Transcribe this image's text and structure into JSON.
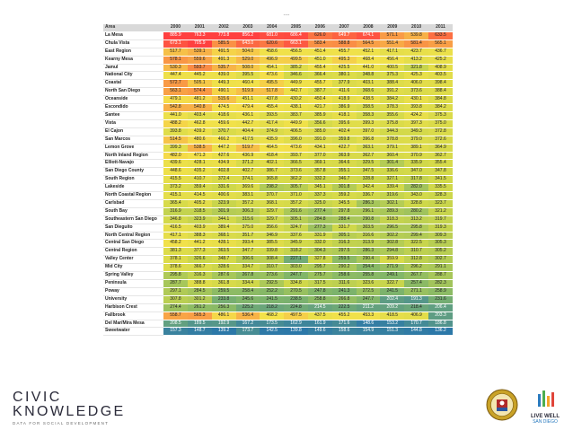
{
  "slide_title": "----",
  "table": {
    "columns": [
      "Area",
      "2000",
      "2001",
      "2002",
      "2003",
      "2004",
      "2005",
      "2006",
      "2007",
      "2008",
      "2009",
      "2010",
      "2011"
    ],
    "color_scale": {
      "high": "#ff4040",
      "mid_high": "#f4e24a",
      "mid": "#cfd84a",
      "low_mid": "#7fb56a",
      "low": "#2c78a8"
    },
    "rows": [
      [
        "La Mesa",
        "885.9",
        "763.3",
        "773.8",
        "856.2",
        "681.0",
        "686.4",
        "626.0",
        "649.7",
        "674.1",
        "571.1",
        "539.8",
        "633.5"
      ],
      [
        "Chula Vista",
        "673.1",
        "705.9",
        "585.5",
        "643.0",
        "620.6",
        "663.1",
        "583.4",
        "588.8",
        "564.5",
        "551.4",
        "581.4",
        "565.1"
      ],
      [
        "East Region",
        "517.7",
        "539.1",
        "491.5",
        "504.0",
        "458.6",
        "456.5",
        "451.4",
        "455.7",
        "452.1",
        "417.1",
        "423.7",
        "436.7"
      ],
      [
        "Kearny Mesa",
        "578.1",
        "559.6",
        "491.3",
        "529.0",
        "496.9",
        "499.5",
        "451.0",
        "495.3",
        "468.4",
        "456.4",
        "413.2",
        "425.2"
      ],
      [
        "Jamul",
        "530.3",
        "593.7",
        "535.7",
        "508.0",
        "454.1",
        "385.2",
        "455.4",
        "425.5",
        "441.0",
        "400.5",
        "321.8",
        "408.9"
      ],
      [
        "National City",
        "447.4",
        "445.2",
        "439.0",
        "395.5",
        "473.6",
        "346.6",
        "366.4",
        "380.1",
        "348.8",
        "375.3",
        "425.3",
        "403.5"
      ],
      [
        "Coastal",
        "572.7",
        "505.1",
        "449.3",
        "460.4",
        "495.5",
        "449.9",
        "455.7",
        "377.9",
        "403.1",
        "388.4",
        "406.0",
        "398.4"
      ],
      [
        "North San Diego",
        "563.1",
        "574.4",
        "490.1",
        "519.9",
        "517.8",
        "442.7",
        "387.7",
        "411.6",
        "368.6",
        "391.2",
        "373.6",
        "388.4"
      ],
      [
        "Oceanside",
        "479.1",
        "481.2",
        "515.6",
        "451.1",
        "437.8",
        "430.2",
        "450.4",
        "418.9",
        "438.5",
        "384.2",
        "430.1",
        "384.8"
      ],
      [
        "Escondido",
        "542.8",
        "540.8",
        "474.5",
        "479.4",
        "455.4",
        "438.1",
        "421.7",
        "386.9",
        "358.5",
        "378.3",
        "393.8",
        "384.2"
      ],
      [
        "Santee",
        "441.0",
        "403.4",
        "418.6",
        "436.1",
        "393.5",
        "383.7",
        "385.9",
        "418.1",
        "358.3",
        "355.6",
        "424.2",
        "375.3"
      ],
      [
        "Vista",
        "488.2",
        "462.8",
        "459.6",
        "442.7",
        "417.4",
        "449.9",
        "356.6",
        "395.6",
        "399.3",
        "375.8",
        "397.3",
        "375.0"
      ],
      [
        "El Cajon",
        "393.8",
        "439.2",
        "370.7",
        "404.4",
        "374.9",
        "406.5",
        "385.0",
        "402.4",
        "397.0",
        "344.3",
        "349.3",
        "372.8"
      ],
      [
        "San Marcos",
        "514.5",
        "480.6",
        "466.2",
        "417.5",
        "435.9",
        "396.0",
        "391.0",
        "359.8",
        "396.8",
        "378.8",
        "379.0",
        "372.6"
      ],
      [
        "Lemon Grove",
        "399.3",
        "538.5",
        "447.2",
        "519.7",
        "464.5",
        "473.6",
        "434.1",
        "422.7",
        "363.1",
        "379.1",
        "389.1",
        "364.9"
      ],
      [
        "North Inland Region",
        "482.0",
        "471.3",
        "427.6",
        "436.9",
        "418.4",
        "393.7",
        "377.0",
        "363.9",
        "362.7",
        "360.4",
        "370.9",
        "362.7"
      ],
      [
        "Elliott-Navajo",
        "439.6",
        "428.1",
        "434.9",
        "371.2",
        "402.1",
        "366.5",
        "369.1",
        "364.6",
        "329.5",
        "301.4",
        "335.9",
        "355.4"
      ],
      [
        "San Diego County",
        "448.6",
        "435.2",
        "402.8",
        "402.7",
        "386.7",
        "373.6",
        "357.8",
        "355.1",
        "347.5",
        "336.6",
        "347.0",
        "347.8"
      ],
      [
        "South Region",
        "415.5",
        "410.7",
        "372.4",
        "374.1",
        "365.8",
        "362.2",
        "332.2",
        "346.7",
        "328.8",
        "327.1",
        "317.8",
        "341.5"
      ],
      [
        "Lakeside",
        "373.2",
        "359.4",
        "331.6",
        "369.6",
        "298.2",
        "305.7",
        "345.1",
        "301.8",
        "342.4",
        "339.4",
        "282.0",
        "335.5"
      ],
      [
        "North Coastal Region",
        "415.1",
        "414.5",
        "400.6",
        "383.1",
        "370.7",
        "371.0",
        "337.3",
        "359.2",
        "336.7",
        "319.6",
        "343.0",
        "328.3"
      ],
      [
        "Carlsbad",
        "365.4",
        "405.2",
        "323.9",
        "357.2",
        "368.1",
        "357.2",
        "325.0",
        "345.5",
        "286.3",
        "302.1",
        "328.8",
        "323.7"
      ],
      [
        "South Bay",
        "316.9",
        "318.5",
        "301.9",
        "306.3",
        "329.7",
        "291.6",
        "277.4",
        "297.8",
        "296.1",
        "289.3",
        "280.2",
        "321.2"
      ],
      [
        "Southeastern San Diego",
        "346.8",
        "323.9",
        "344.1",
        "315.6",
        "329.7",
        "305.1",
        "284.8",
        "288.4",
        "290.8",
        "318.3",
        "313.2",
        "319.7"
      ],
      [
        "San Dieguito",
        "416.5",
        "403.9",
        "389.4",
        "375.0",
        "356.6",
        "324.7",
        "277.3",
        "331.7",
        "303.5",
        "296.5",
        "295.8",
        "319.3"
      ],
      [
        "North Central Region",
        "417.1",
        "388.3",
        "368.1",
        "351.7",
        "346.9",
        "337.6",
        "331.9",
        "305.1",
        "316.6",
        "302.2",
        "299.4",
        "309.3"
      ],
      [
        "Central San Diego",
        "458.2",
        "441.2",
        "428.1",
        "393.4",
        "385.5",
        "345.9",
        "332.0",
        "316.3",
        "313.9",
        "302.8",
        "322.5",
        "305.3"
      ],
      [
        "Central Region",
        "381.3",
        "377.3",
        "363.5",
        "347.7",
        "339.8",
        "318.2",
        "304.3",
        "297.5",
        "286.3",
        "294.8",
        "310.7",
        "305.2"
      ],
      [
        "Valley Center",
        "378.1",
        "326.6",
        "348.7",
        "306.6",
        "308.4",
        "227.1",
        "327.8",
        "259.5",
        "290.4",
        "359.9",
        "312.8",
        "302.7"
      ],
      [
        "Mid City",
        "378.6",
        "366.7",
        "328.6",
        "334.7",
        "310.7",
        "303.0",
        "295.7",
        "290.2",
        "254.4",
        "271.9",
        "296.2",
        "291.1"
      ],
      [
        "Spring Valley",
        "295.8",
        "316.3",
        "287.6",
        "267.8",
        "273.6",
        "247.7",
        "275.7",
        "258.6",
        "255.8",
        "249.1",
        "267.7",
        "288.7"
      ],
      [
        "Peninsula",
        "287.7",
        "388.8",
        "361.8",
        "334.4",
        "292.5",
        "334.8",
        "317.5",
        "311.6",
        "323.6",
        "322.7",
        "257.4",
        "282.3"
      ],
      [
        "Poway",
        "297.1",
        "284.5",
        "259.5",
        "258.4",
        "252.2",
        "270.5",
        "247.8",
        "241.3",
        "272.5",
        "241.5",
        "271.1",
        "258.9"
      ],
      [
        "University",
        "307.8",
        "301.2",
        "233.8",
        "245.6",
        "241.5",
        "238.5",
        "258.8",
        "266.8",
        "247.7",
        "202.4",
        "191.3",
        "231.6"
      ],
      [
        "Harbison Crest",
        "274.4",
        "261.2",
        "256.3",
        "225.2",
        "218.2",
        "224.8",
        "214.5",
        "222.5",
        "211.2",
        "209.2",
        "218.4",
        "206.4"
      ],
      [
        "Fallbrook",
        "558.7",
        "565.3",
        "486.1",
        "536.4",
        "468.2",
        "497.5",
        "437.5",
        "455.2",
        "453.3",
        "418.5",
        "406.9",
        "203.3"
      ],
      [
        "Del Mar/Mira Mesa",
        "208.5",
        "189.5",
        "192.9",
        "167.2",
        "173.5",
        "162.9",
        "161.9",
        "171.6",
        "148.6",
        "153.2",
        "170.7",
        "186.8"
      ],
      [
        "Sweetwater",
        "157.3",
        "148.7",
        "139.2",
        "173.7",
        "142.5",
        "139.8",
        "149.6",
        "158.6",
        "154.9",
        "151.3",
        "144.8",
        "136.2"
      ]
    ]
  },
  "footer": {
    "logo_line1_a": "CIVIC",
    "logo_line2": "KNOWLEDGE",
    "logo_tagline": "DATA FOR SOCIAL DEVELOPMENT",
    "seal_alt_icon": "county-seal-icon",
    "lw_line1": "LIVE WELL",
    "lw_line2": "SAN DIEGO"
  }
}
